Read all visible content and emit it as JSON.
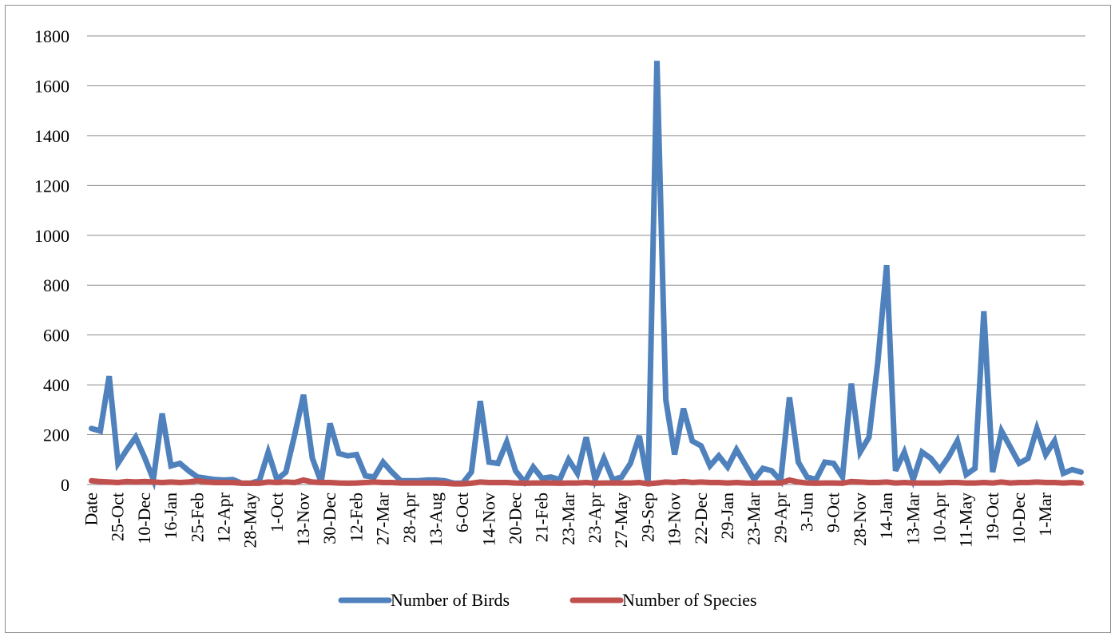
{
  "chart_data": {
    "type": "line",
    "title": "",
    "xlabel": "",
    "ylabel": "",
    "ylim": [
      0,
      1800
    ],
    "yticks": [
      0,
      200,
      400,
      600,
      800,
      1000,
      1200,
      1400,
      1600,
      1800
    ],
    "grid": "horizontal",
    "legend": "bottom",
    "xtick_labels": [
      "Date",
      "25-Oct",
      "10-Dec",
      "16-Jan",
      "25-Feb",
      "12-Apr",
      "28-May",
      "1-Oct",
      "13-Nov",
      "30-Dec",
      "12-Feb",
      "27-Mar",
      "28-Apr",
      "13-Aug",
      "6-Oct",
      "14-Nov",
      "20-Dec",
      "21-Feb",
      "23-Mar",
      "23-Apr",
      "27-May",
      "29-Sep",
      "19-Nov",
      "22-Dec",
      "29-Jan",
      "23-Mar",
      "29-Apr",
      "3-Jun",
      "9-Oct",
      "28-Nov",
      "14-Jan",
      "13-Mar",
      "10-Apr",
      "11-May",
      "19-Oct",
      "10-Dec",
      "1-Mar"
    ],
    "series": [
      {
        "name": "Number of Birds",
        "color": "#4f81bd",
        "values": [
          225,
          215,
          435,
          85,
          140,
          190,
          110,
          20,
          285,
          75,
          85,
          55,
          30,
          25,
          20,
          18,
          20,
          5,
          5,
          15,
          130,
          20,
          50,
          200,
          360,
          105,
          10,
          245,
          125,
          115,
          120,
          35,
          30,
          90,
          50,
          15,
          15,
          15,
          18,
          18,
          15,
          5,
          5,
          50,
          335,
          90,
          85,
          170,
          55,
          10,
          70,
          25,
          30,
          20,
          100,
          45,
          190,
          20,
          105,
          20,
          30,
          85,
          195,
          5,
          1700,
          340,
          120,
          305,
          175,
          155,
          75,
          115,
          70,
          140,
          80,
          20,
          65,
          55,
          15,
          350,
          90,
          30,
          20,
          90,
          85,
          30,
          405,
          130,
          190,
          490,
          880,
          55,
          130,
          20,
          130,
          105,
          60,
          110,
          175,
          40,
          65,
          695,
          50,
          215,
          150,
          85,
          105,
          225,
          120,
          175,
          45,
          60,
          50
        ],
        "data_labels": []
      },
      {
        "name": "Number of Species",
        "color": "#c0504d",
        "values": [
          15,
          12,
          10,
          8,
          12,
          10,
          12,
          10,
          8,
          10,
          8,
          10,
          15,
          10,
          8,
          8,
          8,
          5,
          5,
          5,
          10,
          8,
          10,
          8,
          18,
          10,
          8,
          8,
          6,
          5,
          6,
          8,
          10,
          8,
          8,
          6,
          6,
          6,
          6,
          6,
          5,
          3,
          3,
          5,
          10,
          8,
          8,
          8,
          6,
          5,
          6,
          6,
          6,
          5,
          6,
          6,
          8,
          5,
          6,
          6,
          6,
          6,
          8,
          3,
          6,
          10,
          8,
          12,
          8,
          10,
          8,
          8,
          6,
          8,
          6,
          5,
          6,
          6,
          6,
          18,
          10,
          6,
          5,
          6,
          6,
          5,
          12,
          10,
          8,
          8,
          10,
          6,
          8,
          6,
          6,
          6,
          6,
          8,
          8,
          6,
          6,
          8,
          6,
          10,
          6,
          8,
          8,
          10,
          8,
          8,
          6,
          8,
          6
        ]
      }
    ]
  }
}
